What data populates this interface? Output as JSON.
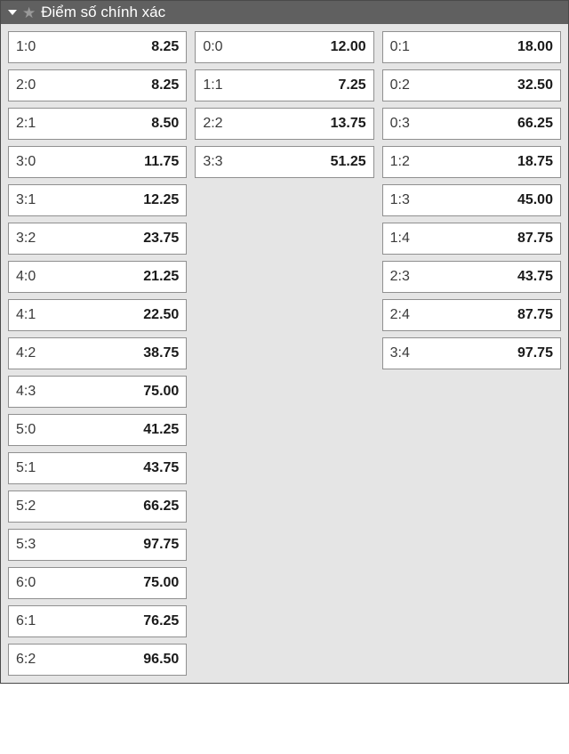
{
  "title": "Điểm số chính xác",
  "columns": [
    [
      {
        "score": "1:0",
        "odds": "8.25"
      },
      {
        "score": "2:0",
        "odds": "8.25"
      },
      {
        "score": "2:1",
        "odds": "8.50"
      },
      {
        "score": "3:0",
        "odds": "11.75"
      },
      {
        "score": "3:1",
        "odds": "12.25"
      },
      {
        "score": "3:2",
        "odds": "23.75"
      },
      {
        "score": "4:0",
        "odds": "21.25"
      },
      {
        "score": "4:1",
        "odds": "22.50"
      },
      {
        "score": "4:2",
        "odds": "38.75"
      },
      {
        "score": "4:3",
        "odds": "75.00"
      },
      {
        "score": "5:0",
        "odds": "41.25"
      },
      {
        "score": "5:1",
        "odds": "43.75"
      },
      {
        "score": "5:2",
        "odds": "66.25"
      },
      {
        "score": "5:3",
        "odds": "97.75"
      },
      {
        "score": "6:0",
        "odds": "75.00"
      },
      {
        "score": "6:1",
        "odds": "76.25"
      },
      {
        "score": "6:2",
        "odds": "96.50"
      }
    ],
    [
      {
        "score": "0:0",
        "odds": "12.00"
      },
      {
        "score": "1:1",
        "odds": "7.25"
      },
      {
        "score": "2:2",
        "odds": "13.75"
      },
      {
        "score": "3:3",
        "odds": "51.25"
      }
    ],
    [
      {
        "score": "0:1",
        "odds": "18.00"
      },
      {
        "score": "0:2",
        "odds": "32.50"
      },
      {
        "score": "0:3",
        "odds": "66.25"
      },
      {
        "score": "1:2",
        "odds": "18.75"
      },
      {
        "score": "1:3",
        "odds": "45.00"
      },
      {
        "score": "1:4",
        "odds": "87.75"
      },
      {
        "score": "2:3",
        "odds": "43.75"
      },
      {
        "score": "2:4",
        "odds": "87.75"
      },
      {
        "score": "3:4",
        "odds": "97.75"
      }
    ]
  ]
}
